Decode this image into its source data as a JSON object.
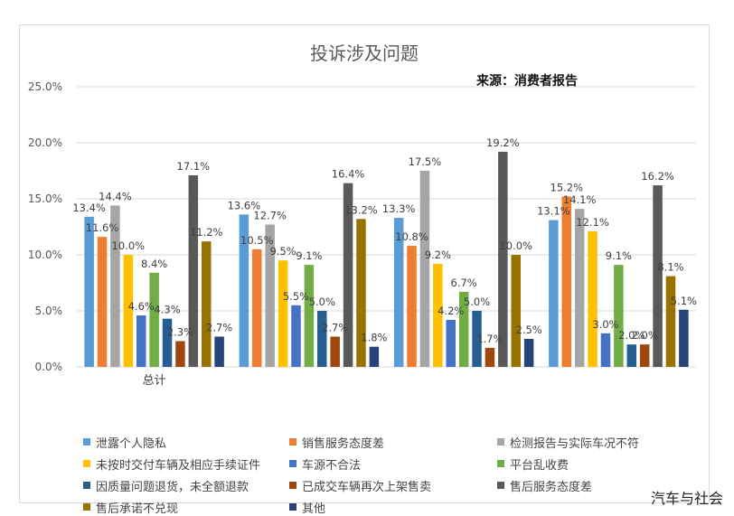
{
  "chart_data": {
    "type": "bar",
    "title": "投诉涉及问题",
    "source": "来源：消费者报告",
    "ylim": [
      0,
      25
    ],
    "yticks": [
      "0.0%",
      "5.0%",
      "10.0%",
      "15.0%",
      "20.0%",
      "25.0%"
    ],
    "categories": [
      "总计",
      "",
      "",
      ""
    ],
    "series": [
      {
        "name": "泄露个人隐私",
        "color": "#5b9bd5",
        "values": [
          13.4,
          13.6,
          13.3,
          13.1
        ],
        "labels": [
          "13.4%",
          "13.6%",
          "13.3%",
          "13.1%"
        ]
      },
      {
        "name": "销售服务态度差",
        "color": "#ed7d31",
        "values": [
          11.6,
          10.5,
          10.8,
          15.2
        ],
        "labels": [
          "11.6%",
          "10.5%",
          "10.8%",
          "15.2%"
        ]
      },
      {
        "name": "检测报告与实际车况不符",
        "color": "#a5a5a5",
        "values": [
          14.4,
          12.7,
          17.5,
          14.1
        ],
        "labels": [
          "14.4%",
          "12.7%",
          "17.5%",
          "14.1%"
        ]
      },
      {
        "name": "未按时交付车辆及相应手续证件",
        "color": "#ffc000",
        "values": [
          10.0,
          9.5,
          9.2,
          12.1
        ],
        "labels": [
          "10.0%",
          "9.5%",
          "9.2%",
          "12.1%"
        ]
      },
      {
        "name": "车源不合法",
        "color": "#4472c4",
        "values": [
          4.6,
          5.5,
          4.2,
          3.0
        ],
        "labels": [
          "4.6%",
          "5.5%",
          "4.2%",
          "3.0%"
        ]
      },
      {
        "name": "平台乱收费",
        "color": "#70ad47",
        "values": [
          8.4,
          9.1,
          6.7,
          9.1
        ],
        "labels": [
          "8.4%",
          "9.1%",
          "6.7%",
          "9.1%"
        ]
      },
      {
        "name": "因质量问题退货，未全额退款",
        "color": "#255e91",
        "values": [
          4.3,
          5.0,
          5.0,
          2.0
        ],
        "labels": [
          "4.3%",
          "5.0%",
          "5.0%",
          "2.0%"
        ]
      },
      {
        "name": "已成交车辆再次上架售卖",
        "color": "#9e480e",
        "values": [
          2.3,
          2.7,
          1.7,
          2.0
        ],
        "labels": [
          "2.3%",
          "2.7%",
          "1.7%",
          "2.0%"
        ]
      },
      {
        "name": "售后服务态度差",
        "color": "#595959",
        "values": [
          17.1,
          16.4,
          19.2,
          16.2
        ],
        "labels": [
          "17.1%",
          "16.4%",
          "19.2%",
          "16.2%"
        ]
      },
      {
        "name": "售后承诺不兑现",
        "color": "#997300",
        "values": [
          11.2,
          13.2,
          10.0,
          8.1
        ],
        "labels": [
          "11.2%",
          "13.2%",
          "10.0%",
          "8.1%"
        ]
      },
      {
        "name": "其他",
        "color": "#264478",
        "values": [
          2.7,
          1.8,
          2.5,
          5.1
        ],
        "labels": [
          "2.7%",
          "1.8%",
          "2.5%",
          "5.1%"
        ]
      }
    ]
  },
  "watermark": "汽车与社会"
}
